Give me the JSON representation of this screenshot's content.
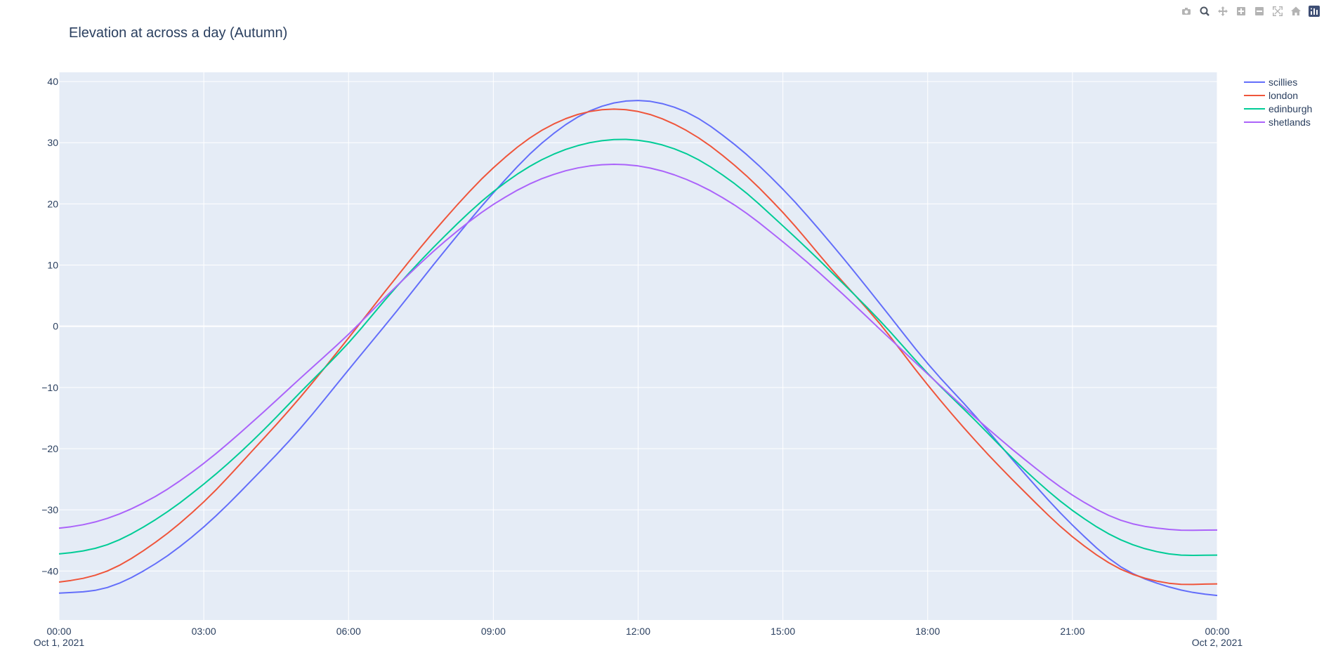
{
  "modebar": {
    "buttons": [
      {
        "name": "camera-icon",
        "color": "#b4b4b4"
      },
      {
        "name": "zoom-icon",
        "color": "#4d5663",
        "active": true
      },
      {
        "name": "pan-icon",
        "color": "#b4b4b4"
      },
      {
        "name": "zoom-in-icon",
        "color": "#b4b4b4"
      },
      {
        "name": "zoom-out-icon",
        "color": "#b4b4b4"
      },
      {
        "name": "autoscale-icon",
        "color": "#b4b4b4"
      },
      {
        "name": "reset-axes-icon",
        "color": "#b4b4b4"
      },
      {
        "name": "plotly-logo-icon",
        "color": "#3f4f75"
      }
    ]
  },
  "chart_data": {
    "type": "line",
    "title": "Elevation at across a day (Autumn)",
    "xlabel": "",
    "ylabel": "",
    "x_range": [
      "2021-10-01T00:00",
      "2021-10-02T00:00"
    ],
    "x_ticks": [
      {
        "label": "00:00",
        "sublabel": "Oct 1, 2021",
        "hour": 0
      },
      {
        "label": "03:00",
        "sublabel": "",
        "hour": 3
      },
      {
        "label": "06:00",
        "sublabel": "",
        "hour": 6
      },
      {
        "label": "09:00",
        "sublabel": "",
        "hour": 9
      },
      {
        "label": "12:00",
        "sublabel": "",
        "hour": 12
      },
      {
        "label": "15:00",
        "sublabel": "",
        "hour": 15
      },
      {
        "label": "18:00",
        "sublabel": "",
        "hour": 18
      },
      {
        "label": "21:00",
        "sublabel": "",
        "hour": 21
      },
      {
        "label": "00:00",
        "sublabel": "Oct 2, 2021",
        "hour": 24
      }
    ],
    "ylim": [
      -48,
      41.5
    ],
    "y_ticks": [
      {
        "label": "40",
        "value": 40
      },
      {
        "label": "30",
        "value": 30
      },
      {
        "label": "20",
        "value": 20
      },
      {
        "label": "10",
        "value": 10
      },
      {
        "label": "0",
        "value": 0
      },
      {
        "label": "−10",
        "value": -10
      },
      {
        "label": "−20",
        "value": -20
      },
      {
        "label": "−30",
        "value": -30
      },
      {
        "label": "−40",
        "value": -40
      }
    ],
    "grid": true,
    "legend_position": "top-right",
    "plot_bg": "#e5ecf6",
    "x": [
      "00:00",
      "01:00",
      "02:00",
      "03:00",
      "04:00",
      "05:00",
      "06:00",
      "07:00",
      "08:00",
      "09:00",
      "10:00",
      "11:00",
      "12:00",
      "13:00",
      "14:00",
      "15:00",
      "16:00",
      "17:00",
      "18:00",
      "19:00",
      "20:00",
      "21:00",
      "22:00",
      "23:00",
      "24:00"
    ],
    "series": [
      {
        "name": "scillies",
        "color": "#636efa",
        "values": [
          -43.6,
          -42.7,
          -38.8,
          -32.8,
          -25.1,
          -16.7,
          -7.1,
          2.5,
          12.4,
          21.8,
          29.9,
          35.2,
          36.9,
          35.0,
          29.7,
          22.4,
          13.5,
          3.8,
          -6.1,
          -14.8,
          -24.0,
          -32.5,
          -39.3,
          -42.6,
          -44.0
        ]
      },
      {
        "name": "london",
        "color": "#ef553b",
        "values": [
          -41.8,
          -40.0,
          -35.3,
          -28.7,
          -20.4,
          -11.6,
          -1.9,
          8.1,
          17.6,
          25.9,
          32.0,
          35.1,
          35.1,
          32.0,
          26.3,
          18.6,
          9.4,
          0.5,
          -9.6,
          -18.8,
          -27.0,
          -34.4,
          -39.7,
          -42.0,
          -42.1
        ]
      },
      {
        "name": "edinburgh",
        "color": "#00cc96",
        "values": [
          -37.2,
          -35.7,
          -31.6,
          -25.8,
          -18.8,
          -10.8,
          -2.7,
          6.5,
          14.8,
          22.0,
          27.2,
          30.0,
          30.4,
          28.2,
          23.3,
          16.4,
          8.9,
          1.0,
          -7.7,
          -15.5,
          -23.4,
          -30.1,
          -34.9,
          -37.2,
          -37.4
        ]
      },
      {
        "name": "shetlands",
        "color": "#ab63fa",
        "values": [
          -33.0,
          -31.4,
          -27.8,
          -22.4,
          -15.7,
          -8.5,
          -1.3,
          6.6,
          13.9,
          19.9,
          24.1,
          26.2,
          26.2,
          24.0,
          19.8,
          13.8,
          7.0,
          -0.4,
          -7.8,
          -15.0,
          -21.7,
          -27.6,
          -31.7,
          -33.2,
          -33.3
        ]
      }
    ]
  }
}
